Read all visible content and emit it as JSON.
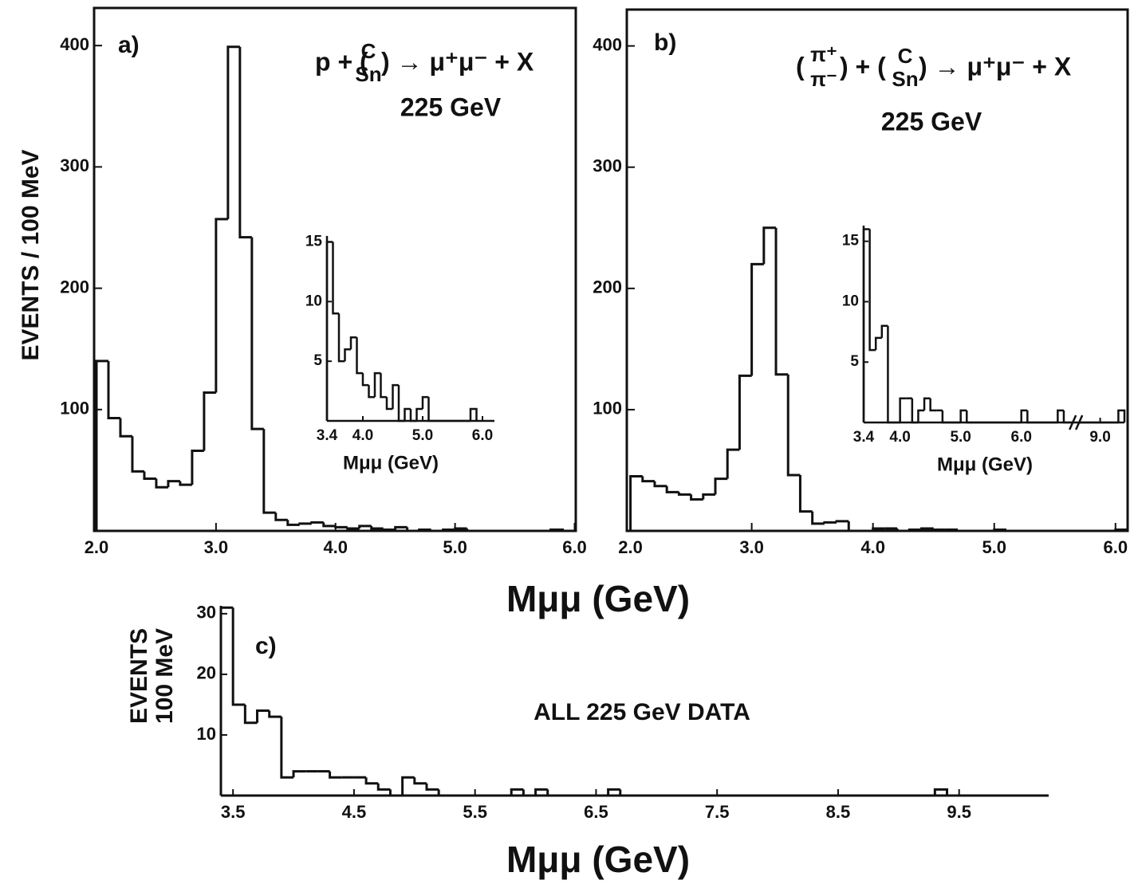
{
  "figure": {
    "x_label": "Mμμ (GeV)",
    "y_label": "EVENTS / 100 MeV"
  },
  "chart_data": [
    {
      "type": "histogram",
      "panel": "a)",
      "reaction": [
        "p + (",
        "C",
        "Sn",
        ") → μ⁺μ⁻ + X"
      ],
      "energy": "225 GeV",
      "bins": [
        2.0,
        2.1,
        2.2,
        2.3,
        2.4,
        2.5,
        2.6,
        2.7,
        2.8,
        2.9,
        3.0,
        3.1,
        3.2,
        3.3,
        3.4,
        3.5,
        3.6,
        3.7,
        3.8,
        3.9,
        4.0,
        4.1,
        4.2,
        4.3,
        4.4,
        4.5,
        4.6,
        4.7,
        4.8,
        4.9,
        5.0,
        5.1,
        5.8,
        5.9
      ],
      "values": [
        140,
        93,
        78,
        49,
        43,
        36,
        41,
        38,
        66,
        114,
        257,
        399,
        242,
        84,
        15,
        9,
        5,
        6,
        7,
        4,
        3,
        2,
        4,
        2,
        1,
        3,
        0,
        1,
        0,
        1,
        2,
        0,
        1
      ],
      "color": "#111111",
      "frame": true,
      "xlim": [
        1.98,
        6.01
      ],
      "ylim": [
        0,
        431
      ],
      "xticks": [
        {
          "value": 2,
          "label": "2.0"
        },
        {
          "value": 3,
          "label": "3.0"
        },
        {
          "value": 4,
          "label": "4.0"
        },
        {
          "value": 5,
          "label": "5.0"
        },
        {
          "value": 6,
          "label": "6.0"
        }
      ],
      "yticks": [
        100,
        200,
        300,
        400
      ]
    },
    {
      "type": "histogram",
      "x_label": "Mμμ (GeV)",
      "bins": [
        3.4,
        3.5,
        3.6,
        3.7,
        3.8,
        3.9,
        4.0,
        4.1,
        4.2,
        4.3,
        4.4,
        4.5,
        4.6,
        4.7,
        4.8,
        4.9,
        5.0,
        5.1,
        5.8,
        5.9
      ],
      "values": [
        15,
        9,
        5,
        6,
        7,
        4,
        3,
        2,
        4,
        2,
        1,
        3,
        0,
        1,
        0,
        1,
        2,
        0,
        1
      ],
      "color": "#111111",
      "frame": false,
      "xlim": [
        3.4,
        6.2
      ],
      "ylim": [
        0,
        15.5
      ],
      "xticks": [
        3.4,
        {
          "value": 4,
          "label": "4.0"
        },
        {
          "value": 5,
          "label": "5.0"
        },
        {
          "value": 6,
          "label": "6.0"
        }
      ],
      "yticks": [
        5,
        10,
        15
      ]
    },
    {
      "type": "histogram",
      "panel": "b)",
      "reaction": [
        "(",
        "π⁺",
        "π⁻",
        ") + (",
        "C",
        "Sn",
        ") → μ⁺μ⁻ + X"
      ],
      "energy": "225 GeV",
      "bins": [
        2.0,
        2.1,
        2.2,
        2.3,
        2.4,
        2.5,
        2.6,
        2.7,
        2.8,
        2.9,
        3.0,
        3.1,
        3.2,
        3.3,
        3.4,
        3.5,
        3.6,
        3.7,
        3.8,
        3.9,
        4.0,
        4.1,
        4.2,
        4.3,
        4.4,
        4.5,
        4.6,
        4.7,
        5.0,
        5.1,
        6.0,
        6.1
      ],
      "values": [
        45,
        41,
        37,
        32,
        30,
        26,
        30,
        43,
        67,
        128,
        220,
        250,
        129,
        46,
        16,
        6,
        7,
        8,
        0,
        0,
        2,
        2,
        0,
        1,
        2,
        1,
        1,
        0,
        1,
        0,
        1
      ],
      "color": "#111111",
      "frame": true,
      "xlim": [
        1.97,
        6.1
      ],
      "ylim": [
        0,
        430
      ],
      "xticks": [
        {
          "value": 2,
          "label": "2.0"
        },
        {
          "value": 3,
          "label": "3.0"
        },
        {
          "value": 4,
          "label": "4.0"
        },
        {
          "value": 5,
          "label": "5.0"
        },
        {
          "value": 6,
          "label": "6.0"
        }
      ],
      "yticks": [
        100,
        200,
        300,
        400
      ]
    },
    {
      "type": "histogram",
      "x_label": "Mμμ (GeV)",
      "bins": [
        3.4,
        3.5,
        3.6,
        3.7,
        3.8,
        3.9,
        4.0,
        4.1,
        4.2,
        4.3,
        4.4,
        4.5,
        4.6,
        4.7,
        5.0,
        5.1,
        6.0,
        6.1,
        6.6,
        6.7,
        9.3,
        9.4
      ],
      "values": [
        16,
        6,
        7,
        8,
        0,
        0,
        2,
        2,
        0,
        1,
        2,
        1,
        1,
        0,
        1,
        0,
        1,
        0,
        1,
        0,
        1
      ],
      "color": "#111111",
      "frame": false,
      "x_break": [
        6.9,
        8.6
      ],
      "xlim": [
        3.4,
        9.4
      ],
      "ylim": [
        0,
        16.3
      ],
      "xticks": [
        3.4,
        {
          "value": 4,
          "label": "4.0"
        },
        {
          "value": 5,
          "label": "5.0"
        },
        {
          "value": 6,
          "label": "6.0"
        },
        {
          "value": 9,
          "label": "9.0"
        }
      ],
      "yticks": [
        5,
        10,
        15
      ]
    },
    {
      "type": "histogram",
      "panel": "c)",
      "annotation": "ALL 225 GeV DATA",
      "x_label": "Mμμ (GeV)",
      "y_label": [
        "EVENTS",
        "100 MeV"
      ],
      "bins": [
        3.4,
        3.5,
        3.6,
        3.7,
        3.8,
        3.9,
        4.0,
        4.1,
        4.2,
        4.3,
        4.4,
        4.5,
        4.6,
        4.7,
        4.8,
        4.9,
        5.0,
        5.1,
        5.2,
        5.8,
        5.9,
        6.0,
        6.1,
        6.6,
        6.7,
        9.3,
        9.4
      ],
      "values": [
        31,
        15,
        12,
        14,
        13,
        3,
        4,
        4,
        4,
        3,
        3,
        3,
        2,
        1,
        0,
        3,
        2,
        1,
        0,
        1,
        0,
        1,
        0,
        1,
        0,
        1
      ],
      "color": "#111111",
      "frame": false,
      "xlim": [
        3.4,
        10.24
      ],
      "ylim": [
        0,
        31.3
      ],
      "xticks": [
        3.5,
        4.5,
        5.5,
        6.5,
        7.5,
        8.5,
        9.5
      ],
      "yticks": [
        10,
        20,
        30
      ]
    }
  ]
}
